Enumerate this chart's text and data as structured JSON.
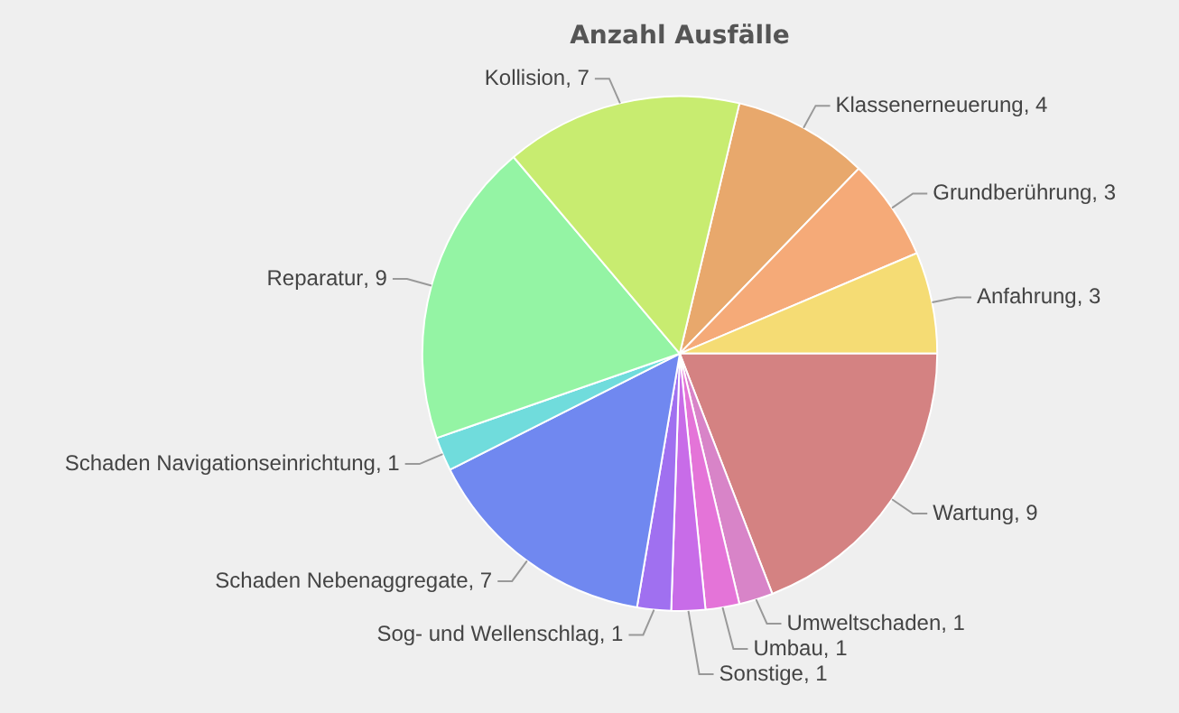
{
  "chart_data": {
    "type": "pie",
    "title": "Anzahl Ausfälle",
    "categories": [
      "Klassenerneuerung",
      "Grundberührung",
      "Anfahrung",
      "Wartung",
      "Umweltschaden",
      "Umbau",
      "Sonstige",
      "Sog- und Wellenschlag",
      "Schaden Nebenaggregate",
      "Schaden Navigationseinrichtung",
      "Reparatur",
      "Kollision"
    ],
    "values": [
      4,
      3,
      3,
      9,
      1,
      1,
      1,
      1,
      7,
      1,
      9,
      7
    ],
    "colors": [
      "#e8a86c",
      "#f5aa78",
      "#f5dc74",
      "#d48282",
      "#d884c8",
      "#e474d8",
      "#c86ce8",
      "#a070f0",
      "#7088f0",
      "#70dcdc",
      "#94f4a4",
      "#c8ec70"
    ],
    "value_labels": [
      ", 4",
      ", 3",
      ", 3",
      ", 9",
      ", 1",
      ", 1",
      ", 1",
      ", 1",
      ", 7",
      ", 1",
      ", 9",
      ", 7"
    ],
    "legend": false
  }
}
